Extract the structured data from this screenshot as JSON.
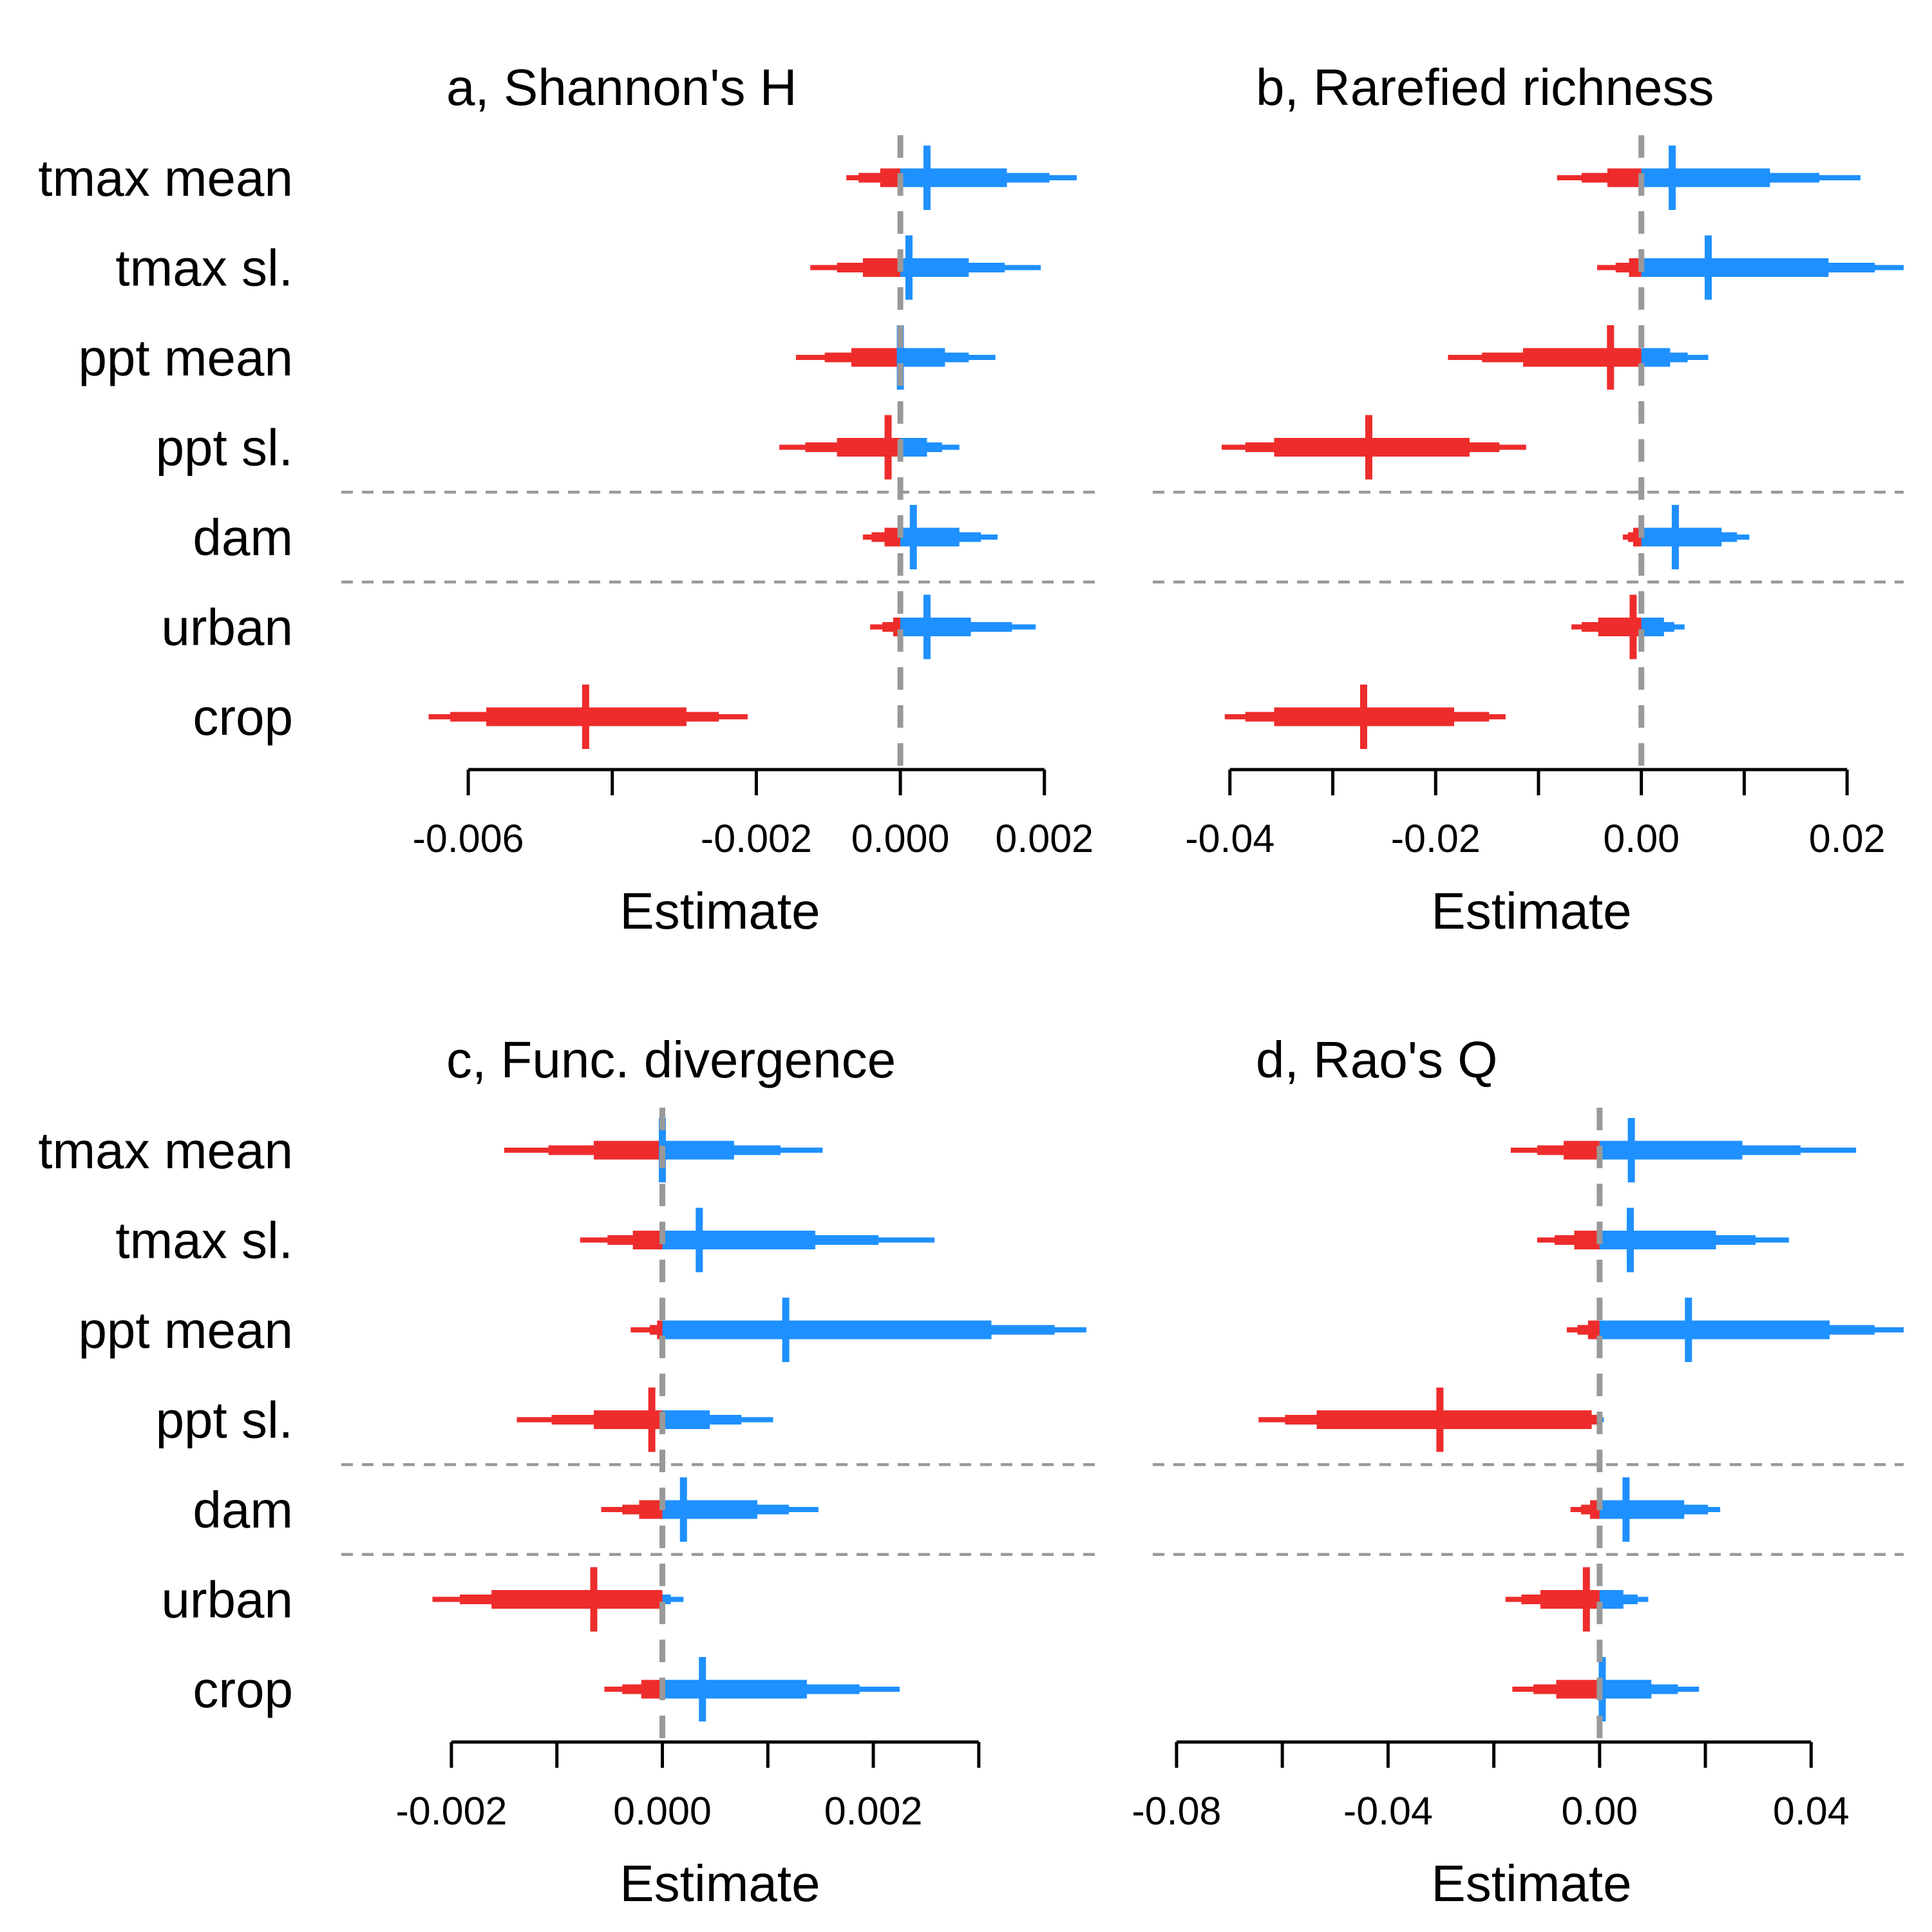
{
  "colors": {
    "negative": "#EE2C2C",
    "positive": "#1E90FF",
    "reference": "#999999",
    "axis": "#000000"
  },
  "chart_data": [
    {
      "type": "interval",
      "title": "a, Shannon's H",
      "xlabel": "Estimate",
      "categories": [
        "tmax mean",
        "tmax sl.",
        "ppt mean",
        "ppt sl.",
        "dam",
        "urban",
        "crop"
      ],
      "group_separators_after": [
        "ppt sl.",
        "dam"
      ],
      "reference_x": 0,
      "xticks": [
        -0.006,
        -0.004,
        -0.002,
        0.0,
        0.002
      ],
      "xtick_labels": [
        "-0.006",
        "",
        "-0.002",
        "0.000",
        "0.002"
      ],
      "xlim": [
        -0.0066,
        0.0027
      ],
      "intervals": [
        {
          "name": "tmax mean",
          "median": 0.00037,
          "q50": [
            -0.00028,
            0.00148
          ],
          "q80": [
            -0.00058,
            0.00207
          ],
          "q95": [
            -0.00075,
            0.00245
          ]
        },
        {
          "name": "tmax sl.",
          "median": 0.00012,
          "q50": [
            -0.00052,
            0.00095
          ],
          "q80": [
            -0.00088,
            0.00145
          ],
          "q95": [
            -0.00125,
            0.00195
          ]
        },
        {
          "name": "ppt mean",
          "median": 0.0,
          "q50": [
            -0.00068,
            0.00062
          ],
          "q80": [
            -0.00105,
            0.00095
          ],
          "q95": [
            -0.00145,
            0.00132
          ]
        },
        {
          "name": "ppt sl.",
          "median": -0.00017,
          "q50": [
            -0.00088,
            0.00037
          ],
          "q80": [
            -0.00132,
            0.00058
          ],
          "q95": [
            -0.00168,
            0.00082
          ]
        },
        {
          "name": "dam",
          "median": 0.00018,
          "q50": [
            -0.00022,
            0.00082
          ],
          "q80": [
            -0.0004,
            0.00112
          ],
          "q95": [
            -0.00052,
            0.00135
          ]
        },
        {
          "name": "urban",
          "median": 0.00037,
          "q50": [
            -0.0001,
            0.00098
          ],
          "q80": [
            -0.00025,
            0.00155
          ],
          "q95": [
            -0.00042,
            0.00188
          ]
        },
        {
          "name": "crop",
          "median": -0.00437,
          "q50": [
            -0.00575,
            -0.00297
          ],
          "q80": [
            -0.00625,
            -0.00252
          ],
          "q95": [
            -0.00655,
            -0.00212
          ]
        }
      ]
    },
    {
      "type": "interval",
      "title": "b, Rarefied richness",
      "xlabel": "Estimate",
      "categories": [
        "tmax mean",
        "tmax sl.",
        "ppt mean",
        "ppt sl.",
        "dam",
        "urban",
        "crop"
      ],
      "group_separators_after": [
        "ppt sl.",
        "dam"
      ],
      "reference_x": 0,
      "xticks": [
        -0.04,
        -0.03,
        -0.02,
        -0.01,
        0.0,
        0.01,
        0.02
      ],
      "xtick_labels": [
        "-0.04",
        "",
        "-0.02",
        "",
        "0.00",
        "",
        "0.02"
      ],
      "xlim": [
        -0.0475,
        0.0255
      ],
      "intervals": [
        {
          "name": "tmax mean",
          "median": 0.003,
          "q50": [
            -0.0033,
            0.0125
          ],
          "q80": [
            -0.0058,
            0.0173
          ],
          "q95": [
            -0.0082,
            0.0213
          ]
        },
        {
          "name": "tmax sl.",
          "median": 0.0065,
          "q50": [
            -0.0012,
            0.0182
          ],
          "q80": [
            -0.0025,
            0.0227
          ],
          "q95": [
            -0.0043,
            0.0255
          ]
        },
        {
          "name": "ppt mean",
          "median": -0.003,
          "q50": [
            -0.0115,
            0.0028
          ],
          "q80": [
            -0.0155,
            0.0045
          ],
          "q95": [
            -0.0188,
            0.0065
          ]
        },
        {
          "name": "ppt sl.",
          "median": -0.0265,
          "q50": [
            -0.0357,
            -0.0167
          ],
          "q80": [
            -0.0385,
            -0.0138
          ],
          "q95": [
            -0.0408,
            -0.0112
          ]
        },
        {
          "name": "dam",
          "median": 0.0033,
          "q50": [
            -0.0008,
            0.0078
          ],
          "q80": [
            -0.0013,
            0.0093
          ],
          "q95": [
            -0.0018,
            0.0105
          ]
        },
        {
          "name": "urban",
          "median": -0.0008,
          "q50": [
            -0.0042,
            0.0022
          ],
          "q80": [
            -0.0058,
            0.0032
          ],
          "q95": [
            -0.0068,
            0.0042
          ]
        },
        {
          "name": "crop",
          "median": -0.027,
          "q50": [
            -0.0357,
            -0.0182
          ],
          "q80": [
            -0.0385,
            -0.0148
          ],
          "q95": [
            -0.0405,
            -0.0132
          ]
        }
      ]
    },
    {
      "type": "interval",
      "title": "c, Func. divergence",
      "xlabel": "Estimate",
      "categories": [
        "tmax mean",
        "tmax sl.",
        "ppt mean",
        "ppt sl.",
        "dam",
        "urban",
        "crop"
      ],
      "group_separators_after": [
        "ppt sl.",
        "dam"
      ],
      "reference_x": 0,
      "xticks": [
        -0.002,
        -0.001,
        0.0,
        0.001,
        0.002,
        0.003
      ],
      "xtick_labels": [
        "-0.002",
        "",
        "0.000",
        "",
        "0.002",
        ""
      ],
      "xlim": [
        -0.00225,
        0.0041
      ],
      "intervals": [
        {
          "name": "tmax mean",
          "median": 0.0,
          "q50": [
            -0.00065,
            0.00068
          ],
          "q80": [
            -0.00108,
            0.00112
          ],
          "q95": [
            -0.0015,
            0.00152
          ]
        },
        {
          "name": "tmax sl.",
          "median": 0.00035,
          "q50": [
            -0.00028,
            0.00145
          ],
          "q80": [
            -0.00052,
            0.00205
          ],
          "q95": [
            -0.00078,
            0.00258
          ]
        },
        {
          "name": "ppt mean",
          "median": 0.00117,
          "q50": [
            -5e-05,
            0.00312
          ],
          "q80": [
            -0.00012,
            0.00372
          ],
          "q95": [
            -0.0003,
            0.00402
          ]
        },
        {
          "name": "ppt sl.",
          "median": -0.0001,
          "q50": [
            -0.00065,
            0.00045
          ],
          "q80": [
            -0.00105,
            0.00075
          ],
          "q95": [
            -0.00138,
            0.00105
          ]
        },
        {
          "name": "dam",
          "median": 0.0002,
          "q50": [
            -0.00022,
            0.0009
          ],
          "q80": [
            -0.00038,
            0.0012
          ],
          "q95": [
            -0.00058,
            0.00148
          ]
        },
        {
          "name": "urban",
          "median": -0.00065,
          "q50": [
            -0.00162,
            0.0
          ],
          "q80": [
            -0.00192,
            8e-05
          ],
          "q95": [
            -0.00218,
            0.0002
          ]
        },
        {
          "name": "crop",
          "median": 0.00038,
          "q50": [
            -0.0002,
            0.00137
          ],
          "q80": [
            -0.00038,
            0.00187
          ],
          "q95": [
            -0.00055,
            0.00225
          ]
        }
      ]
    },
    {
      "type": "interval",
      "title": "d, Rao's Q",
      "xlabel": "Estimate",
      "categories": [
        "tmax mean",
        "tmax sl.",
        "ppt mean",
        "ppt sl.",
        "dam",
        "urban",
        "crop"
      ],
      "group_separators_after": [
        "ppt sl.",
        "dam"
      ],
      "reference_x": 0,
      "xticks": [
        -0.08,
        -0.06,
        -0.04,
        -0.02,
        0.0,
        0.02,
        0.04
      ],
      "xtick_labels": [
        "-0.08",
        "",
        "-0.04",
        "",
        "0.00",
        "",
        "0.04"
      ],
      "xlim": [
        -0.0845,
        0.0575
      ],
      "intervals": [
        {
          "name": "tmax mean",
          "median": 0.006,
          "q50": [
            -0.0068,
            0.027
          ],
          "q80": [
            -0.0118,
            0.038
          ],
          "q95": [
            -0.0168,
            0.0485
          ]
        },
        {
          "name": "tmax sl.",
          "median": 0.0058,
          "q50": [
            -0.0048,
            0.022
          ],
          "q80": [
            -0.0085,
            0.0295
          ],
          "q95": [
            -0.0118,
            0.0358
          ]
        },
        {
          "name": "ppt mean",
          "median": 0.0168,
          "q50": [
            -0.0022,
            0.0435
          ],
          "q80": [
            -0.0042,
            0.052
          ],
          "q95": [
            -0.0062,
            0.0575
          ]
        },
        {
          "name": "ppt sl.",
          "median": -0.0302,
          "q50": [
            -0.0535,
            -0.0015
          ],
          "q80": [
            -0.0595,
            0.0
          ],
          "q95": [
            -0.0645,
            0.0008
          ]
        },
        {
          "name": "dam",
          "median": 0.005,
          "q50": [
            -0.0018,
            0.016
          ],
          "q80": [
            -0.0035,
            0.0205
          ],
          "q95": [
            -0.0055,
            0.0228
          ]
        },
        {
          "name": "urban",
          "median": -0.0025,
          "q50": [
            -0.0112,
            0.0045
          ],
          "q80": [
            -0.0148,
            0.0072
          ],
          "q95": [
            -0.0178,
            0.0092
          ]
        },
        {
          "name": "crop",
          "median": 0.0005,
          "q50": [
            -0.0082,
            0.0098
          ],
          "q80": [
            -0.0125,
            0.0148
          ],
          "q95": [
            -0.0165,
            0.0188
          ]
        }
      ]
    }
  ]
}
